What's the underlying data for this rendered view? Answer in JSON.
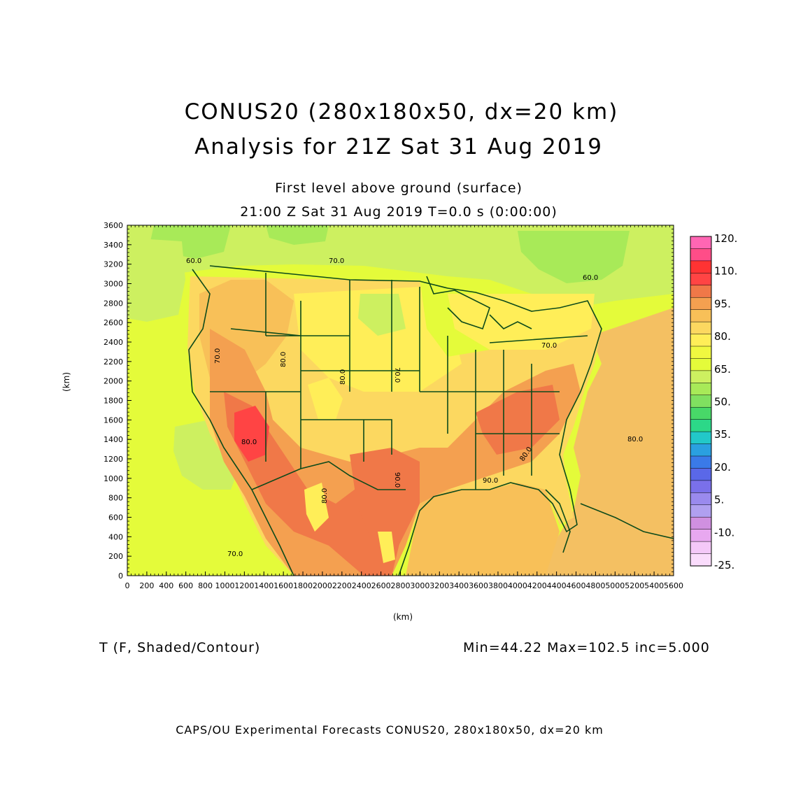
{
  "title": {
    "line1": "CONUS20 (280x180x50, dx=20 km)",
    "line2": "Analysis for 21Z Sat 31 Aug 2019"
  },
  "subtitle": {
    "level": "First level above ground (surface)",
    "time": "21:00 Z Sat 31 Aug 2019    T=0.0 s (0:00:00)"
  },
  "axes": {
    "x_label": "(km)",
    "y_label": "(km)",
    "x_range": [
      0,
      5600
    ],
    "y_range": [
      0,
      3600
    ],
    "x_ticks": [
      "0",
      "200",
      "400",
      "600",
      "800",
      "1000",
      "1200",
      "1400",
      "1600",
      "1800",
      "2000",
      "2200",
      "2400",
      "2600",
      "2800",
      "3000",
      "3200",
      "3400",
      "3600",
      "3800",
      "4000",
      "4200",
      "4400",
      "4600",
      "4800",
      "5000",
      "5200",
      "5400",
      "5600"
    ],
    "y_ticks": [
      "0",
      "200",
      "400",
      "600",
      "800",
      "1000",
      "1200",
      "1400",
      "1600",
      "1800",
      "2000",
      "2200",
      "2400",
      "2600",
      "2800",
      "3000",
      "3200",
      "3400",
      "3600"
    ]
  },
  "colorbar": {
    "labels": [
      "120.",
      "110.",
      "95.",
      "80.",
      "65.",
      "50.",
      "35.",
      "20.",
      "5.",
      "-10.",
      "-25."
    ],
    "colors": [
      "#ff66b3",
      "#ff4d88",
      "#ff3333",
      "#ff4444",
      "#f07848",
      "#f4a050",
      "#f8c058",
      "#fcd860",
      "#ffee58",
      "#f0f840",
      "#e4fb3a",
      "#cdf060",
      "#a8ea58",
      "#80e060",
      "#48d868",
      "#2cd888",
      "#22c8c8",
      "#2aa0e0",
      "#3a7ae8",
      "#5a68e8",
      "#7a70ea",
      "#9a8aee",
      "#b0a0f0",
      "#d090e0",
      "#e8a8f0",
      "#f4c8f8",
      "#fadcfc"
    ]
  },
  "contour_labels": [
    "60.0",
    "70.0",
    "60.0",
    "70.0",
    "80.0",
    "70.0",
    "80.0",
    "70.0",
    "80.0",
    "90.0",
    "80.0",
    "80.0",
    "90.0",
    "80.0",
    "70.0"
  ],
  "stats": {
    "variable": "T (F, Shaded/Contour)",
    "minmax": "Min=44.22 Max=102.5 inc=5.000"
  },
  "footer": "CAPS/OU Experimental Forecasts  CONUS20, 280x180x50, dx=20 km",
  "colors": {
    "border": "#0d4a1a",
    "ocean_pacific": "#e4fb3a",
    "ocean_atlantic": "#f4c062"
  }
}
